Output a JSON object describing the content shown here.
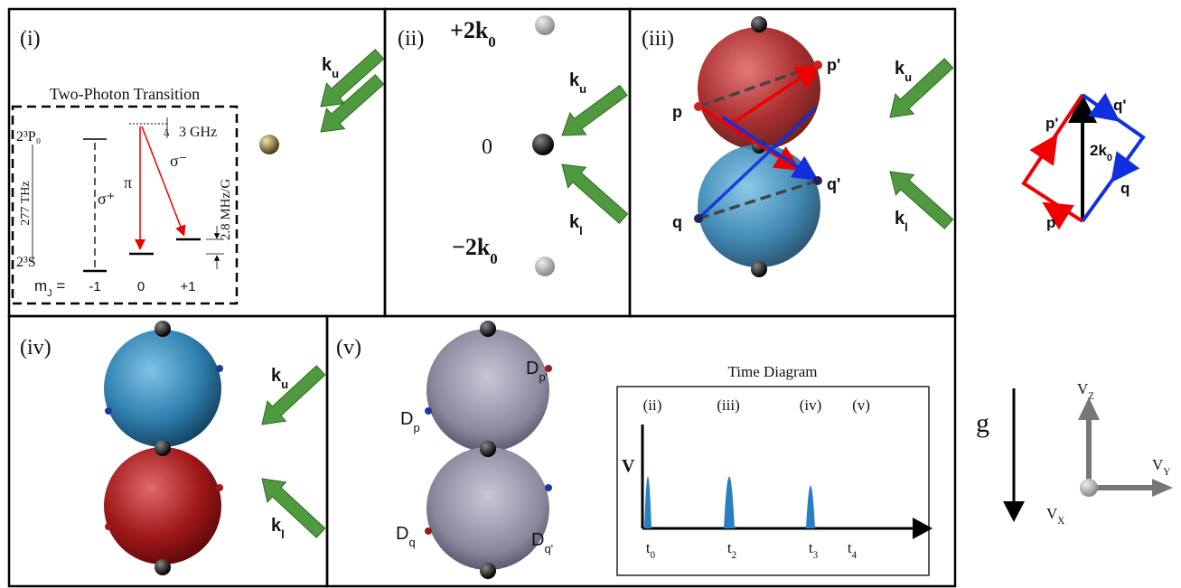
{
  "panel_i": {
    "label": "(i)",
    "title": "Two-Photon Transition",
    "upper_level": "2³P₀",
    "lower_level": "2³S",
    "frequency": "277 THz",
    "sigma_plus": "σ⁺",
    "pi": "π",
    "sigma_minus": "σ⁻",
    "delta": "Δ",
    "detuning": "3 GHz",
    "zeeman": "2.8 MHz/G",
    "mj_label": {
      "base": "m",
      "sub": "J",
      "tail": " = "
    },
    "mj_values": [
      "-1",
      "0",
      "+1"
    ],
    "k_upper": {
      "base": "k",
      "sub": "u"
    }
  },
  "panel_ii": {
    "label": "(ii)",
    "plus": {
      "base": "+2k",
      "sub": "0"
    },
    "zero": "0",
    "minus": {
      "base": "−2k",
      "sub": "0"
    },
    "k_upper": {
      "base": "k",
      "sub": "u"
    },
    "k_lower": {
      "base": "k",
      "sub": "l"
    }
  },
  "panel_iii": {
    "label": "(iii)",
    "p_prime": "p'",
    "p": "p",
    "q_prime": "q'",
    "q": "q",
    "k_upper": {
      "base": "k",
      "sub": "u"
    },
    "k_lower": {
      "base": "k",
      "sub": "l"
    }
  },
  "loop": {
    "p_prime": "p'",
    "q_prime": "q'",
    "momentum": {
      "base": "2k",
      "sub": "0"
    },
    "q": "q",
    "p": "p"
  },
  "panel_iv": {
    "label": "(iv)",
    "k_upper": {
      "base": "k",
      "sub": "u"
    },
    "k_lower": {
      "base": "k",
      "sub": "l"
    }
  },
  "panel_v": {
    "label": "(v)",
    "d_p_prime": {
      "base": "D",
      "sub": "p'"
    },
    "d_p": {
      "base": "D",
      "sub": "p"
    },
    "d_q_prime": {
      "base": "D",
      "sub": "q'"
    },
    "d_q": {
      "base": "D",
      "sub": "q"
    }
  },
  "time_diagram": {
    "title": "Time Diagram",
    "stages": [
      "(ii)",
      "(iii)",
      "(iv)",
      "(v)"
    ],
    "axis": "V",
    "times": [
      {
        "base": "t",
        "sub": "0"
      },
      {
        "base": "t",
        "sub": "2"
      },
      {
        "base": "t",
        "sub": "3"
      },
      {
        "base": "t",
        "sub": "4"
      }
    ]
  },
  "frame": {
    "gravity": "g",
    "vz": {
      "base": "V",
      "sub": "Z"
    },
    "vy": {
      "base": "V",
      "sub": "Y"
    },
    "vx": {
      "base": "V",
      "sub": "X"
    }
  }
}
